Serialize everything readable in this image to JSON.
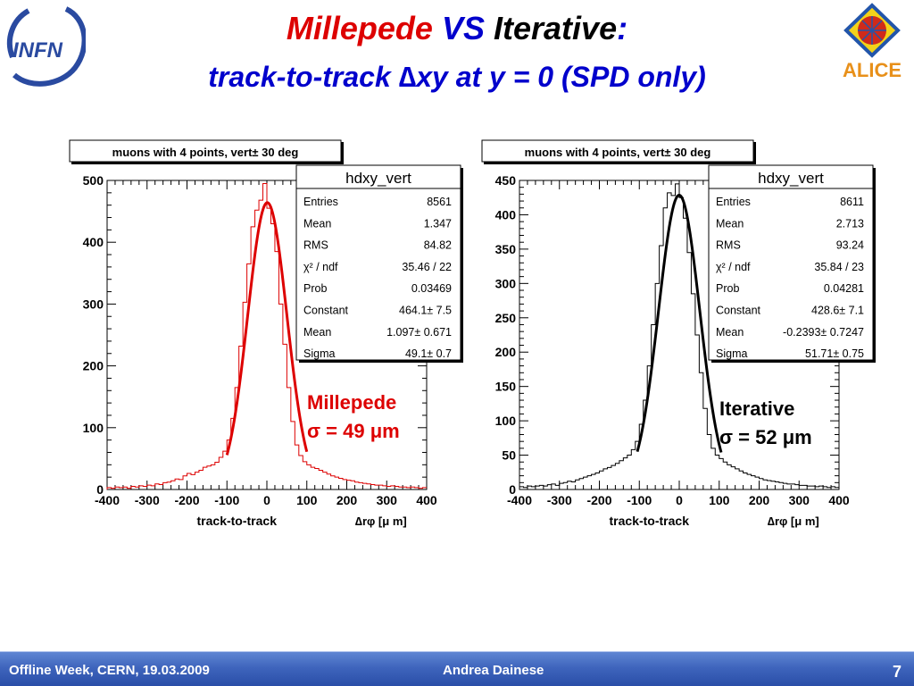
{
  "slide": {
    "title_line1": {
      "millepede": "Millepede",
      "vs": "VS",
      "iterative": "Iterative",
      "colon": ":"
    },
    "title_line2": {
      "prefix": "track-to-track ",
      "delta": "∆",
      "xy": "xy",
      "suffix": " at y = 0 (SPD only)"
    },
    "footer": {
      "left": "Offline Week, CERN, 19.03.2009",
      "center": "Andrea Dainese",
      "page": "7"
    },
    "logos": {
      "left": "INFN",
      "right": "ALICE"
    }
  },
  "colors": {
    "millepede": "#dd0000",
    "iterative": "#000000",
    "accent_blue": "#0000cc",
    "footer": "#3f65bd"
  },
  "chart_data": [
    {
      "type": "histogram",
      "title": "muons with 4 points, vert± 30 deg",
      "xlabel": "track-to-track",
      "xlabel_symbol": "∆rφ [μ m]",
      "xlim": [
        -400,
        400
      ],
      "ylim": [
        0,
        500
      ],
      "xticks": [
        "-400",
        "-300",
        "-200",
        "-100",
        "0",
        "100",
        "200",
        "300",
        "400"
      ],
      "yticks": [
        "0",
        "100",
        "200",
        "300",
        "400",
        "500"
      ],
      "ytick_values": [
        0,
        100,
        200,
        300,
        400,
        500
      ],
      "color": "#dd0000",
      "stats": {
        "name": "hdxy_vert",
        "rows": [
          {
            "label": "Entries",
            "value": "8561"
          },
          {
            "label": "Mean",
            "value": "1.347"
          },
          {
            "label": "RMS",
            "value": "84.82"
          },
          {
            "label": "χ² / ndf",
            "value": "35.46 / 22"
          },
          {
            "label": "Prob",
            "value": "0.03469"
          },
          {
            "label": "Constant",
            "value": "464.1± 7.5"
          },
          {
            "label": "Mean",
            "value": "1.097± 0.671"
          },
          {
            "label": "Sigma",
            "value": "49.1± 0.7"
          }
        ]
      },
      "fit": {
        "constant": 464.1,
        "mean": 1.097,
        "sigma": 49.1,
        "range": [
          -100,
          100
        ]
      },
      "annotation": {
        "line1": "Millepede",
        "line2": "σ = 49 μm"
      },
      "bin_width": 10,
      "bin_centers": [
        -395,
        -385,
        -375,
        -365,
        -355,
        -345,
        -335,
        -325,
        -315,
        -305,
        -295,
        -285,
        -275,
        -265,
        -255,
        -245,
        -235,
        -225,
        -215,
        -205,
        -195,
        -185,
        -175,
        -165,
        -155,
        -145,
        -135,
        -125,
        -115,
        -105,
        -95,
        -85,
        -75,
        -65,
        -55,
        -45,
        -35,
        -25,
        -15,
        -5,
        5,
        15,
        25,
        35,
        45,
        55,
        65,
        75,
        85,
        95,
        105,
        115,
        125,
        135,
        145,
        155,
        165,
        175,
        185,
        195,
        205,
        215,
        225,
        235,
        245,
        255,
        265,
        275,
        285,
        295,
        305,
        315,
        325,
        335,
        345,
        355,
        365,
        375,
        385,
        395
      ],
      "counts": [
        3,
        2,
        4,
        3,
        4,
        2,
        5,
        4,
        6,
        5,
        7,
        6,
        9,
        8,
        11,
        12,
        14,
        17,
        16,
        22,
        26,
        24,
        28,
        31,
        36,
        38,
        40,
        44,
        52,
        62,
        80,
        115,
        165,
        232,
        303,
        365,
        425,
        452,
        468,
        495,
        455,
        430,
        385,
        300,
        235,
        165,
        110,
        72,
        55,
        45,
        40,
        36,
        34,
        31,
        28,
        25,
        22,
        20,
        18,
        16,
        15,
        14,
        12,
        11,
        10,
        9,
        8,
        7,
        7,
        6,
        5,
        6,
        5,
        4,
        4,
        3,
        4,
        3,
        2,
        3
      ]
    },
    {
      "type": "histogram",
      "title": "muons with 4 points, vert± 30 deg",
      "xlabel": "track-to-track",
      "xlabel_symbol": "∆rφ [μ m]",
      "xlim": [
        -400,
        400
      ],
      "ylim": [
        0,
        450
      ],
      "xticks": [
        "-400",
        "-300",
        "-200",
        "-100",
        "0",
        "100",
        "200",
        "300",
        "400"
      ],
      "yticks": [
        "0",
        "50",
        "100",
        "150",
        "200",
        "250",
        "300",
        "350",
        "400",
        "450"
      ],
      "ytick_values": [
        0,
        50,
        100,
        150,
        200,
        250,
        300,
        350,
        400,
        450
      ],
      "color": "#000000",
      "stats": {
        "name": "hdxy_vert",
        "rows": [
          {
            "label": "Entries",
            "value": "8611"
          },
          {
            "label": "Mean",
            "value": "2.713"
          },
          {
            "label": "RMS",
            "value": "93.24"
          },
          {
            "label": "χ² / ndf",
            "value": "35.84 / 23"
          },
          {
            "label": "Prob",
            "value": "0.04281"
          },
          {
            "label": "Constant",
            "value": "428.6± 7.1"
          },
          {
            "label": "Mean",
            "value": "-0.2393± 0.7247"
          },
          {
            "label": "Sigma",
            "value": "51.71± 0.75"
          }
        ]
      },
      "fit": {
        "constant": 428.6,
        "mean": -0.2393,
        "sigma": 51.71,
        "range": [
          -105,
          105
        ]
      },
      "annotation": {
        "line1": "Iterative",
        "line2": "σ = 52 μm"
      },
      "bin_width": 10,
      "bin_centers": [
        -395,
        -385,
        -375,
        -365,
        -355,
        -345,
        -335,
        -325,
        -315,
        -305,
        -295,
        -285,
        -275,
        -265,
        -255,
        -245,
        -235,
        -225,
        -215,
        -205,
        -195,
        -185,
        -175,
        -165,
        -155,
        -145,
        -135,
        -125,
        -115,
        -105,
        -95,
        -85,
        -75,
        -65,
        -55,
        -45,
        -35,
        -25,
        -15,
        -5,
        5,
        15,
        25,
        35,
        45,
        55,
        65,
        75,
        85,
        95,
        105,
        115,
        125,
        135,
        145,
        155,
        165,
        175,
        185,
        195,
        205,
        215,
        225,
        235,
        245,
        255,
        265,
        275,
        285,
        295,
        305,
        315,
        325,
        335,
        345,
        355,
        365,
        375,
        385,
        395
      ],
      "counts": [
        4,
        3,
        5,
        4,
        5,
        6,
        5,
        7,
        8,
        6,
        9,
        10,
        12,
        11,
        14,
        16,
        18,
        20,
        22,
        24,
        27,
        30,
        32,
        35,
        38,
        42,
        46,
        50,
        58,
        70,
        95,
        130,
        180,
        240,
        300,
        355,
        410,
        432,
        428,
        445,
        425,
        395,
        345,
        285,
        225,
        170,
        118,
        80,
        60,
        50,
        45,
        40,
        36,
        33,
        30,
        27,
        24,
        22,
        20,
        18,
        16,
        14,
        13,
        12,
        11,
        10,
        9,
        8,
        8,
        7,
        6,
        6,
        5,
        5,
        4,
        5,
        4,
        3,
        4,
        3
      ]
    }
  ]
}
